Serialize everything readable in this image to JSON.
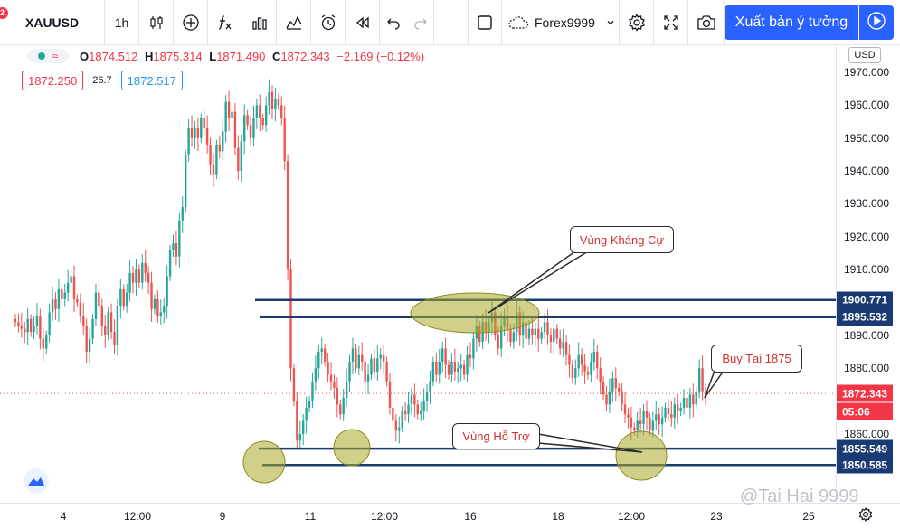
{
  "toolbar": {
    "notification_count": "2",
    "symbol": "XAUUSD",
    "interval": "1h",
    "broker": "Forex9999",
    "publish_label": "Xuất bản ý tưởng"
  },
  "legend": {
    "open_key": "O",
    "open": "1874.512",
    "high_key": "H",
    "high": "1875.314",
    "low_key": "L",
    "low": "1871.490",
    "close_key": "C",
    "close": "1872.343",
    "change": "−2.169 (−0.12%)"
  },
  "quote": {
    "sell": "1872.250",
    "spread": "26.7",
    "buy": "1872.517"
  },
  "price_axis": {
    "currency": "USD",
    "labels": [
      "1970.000",
      "1960.000",
      "1950.000",
      "1940.000",
      "1930.000",
      "1920.000",
      "1910.000",
      "1890.000",
      "1880.000",
      "1860.000"
    ],
    "levels": [
      "1970.000",
      "1960.000",
      "1950.000",
      "1940.000",
      "1930.000",
      "1920.000",
      "1910.000",
      "1890.000",
      "1880.000",
      "1860.000"
    ],
    "tags": {
      "resistance_high": "1900.771",
      "resistance_low": "1895.532",
      "current": "1872.343",
      "countdown": "05:06",
      "support_high": "1855.549",
      "support_low": "1850.585"
    }
  },
  "time_axis": {
    "labels": [
      "4",
      "12:00",
      "9",
      "11",
      "12:00",
      "16",
      "18",
      "12:00",
      "23",
      "25"
    ]
  },
  "annotations": {
    "resistance": "Vùng Kháng Cự",
    "support": "Vùng Hỗ Trợ",
    "buy": "Buy Tại 1875"
  },
  "watermark": "@Tai Hai 9999",
  "chart_data": {
    "type": "candlestick",
    "symbol": "XAUUSD",
    "interval": "1h",
    "ylim": [
      1843,
      1978
    ],
    "horizontal_levels": [
      1900.771,
      1895.532,
      1855.549,
      1850.585
    ],
    "current_price": 1872.343,
    "closes": [
      1894,
      1893,
      1892,
      1891,
      1895,
      1891,
      1893,
      1896,
      1889,
      1886,
      1890,
      1897,
      1901,
      1898,
      1904,
      1901,
      1903,
      1906,
      1908,
      1901,
      1900,
      1896,
      1893,
      1885,
      1889,
      1895,
      1903,
      1899,
      1893,
      1890,
      1897,
      1891,
      1887,
      1899,
      1904,
      1899,
      1903,
      1909,
      1906,
      1910,
      1906,
      1912,
      1909,
      1906,
      1898,
      1901,
      1896,
      1897,
      1899,
      1908,
      1916,
      1918,
      1914,
      1925,
      1929,
      1945,
      1953,
      1950,
      1953,
      1950,
      1956,
      1953,
      1948,
      1942,
      1939,
      1948,
      1946,
      1952,
      1961,
      1956,
      1958,
      1947,
      1940,
      1949,
      1957,
      1954,
      1950,
      1956,
      1960,
      1956,
      1954,
      1960,
      1964,
      1959,
      1962,
      1960,
      1956,
      1943,
      1910,
      1880,
      1870,
      1858,
      1860,
      1864,
      1868,
      1870,
      1876,
      1880,
      1885,
      1886,
      1882,
      1878,
      1876,
      1874,
      1869,
      1866,
      1871,
      1876,
      1882,
      1886,
      1880,
      1884,
      1882,
      1876,
      1878,
      1883,
      1879,
      1883,
      1884,
      1882,
      1876,
      1868,
      1864,
      1861,
      1862,
      1867,
      1866,
      1869,
      1872,
      1869,
      1866,
      1867,
      1870,
      1873,
      1876,
      1882,
      1878,
      1882,
      1886,
      1881,
      1878,
      1882,
      1879,
      1880,
      1881,
      1878,
      1884,
      1883,
      1889,
      1893,
      1888,
      1894,
      1891,
      1894,
      1897,
      1890,
      1886,
      1893,
      1896,
      1892,
      1888,
      1891,
      1897,
      1890,
      1894,
      1889,
      1892,
      1890,
      1892,
      1889,
      1891,
      1894,
      1890,
      1888,
      1892,
      1889,
      1886,
      1888,
      1884,
      1881,
      1877,
      1880,
      1884,
      1881,
      1879,
      1878,
      1882,
      1885,
      1880,
      1876,
      1872,
      1869,
      1873,
      1877,
      1874,
      1873,
      1869,
      1866,
      1865,
      1862,
      1861,
      1864,
      1863,
      1867,
      1865,
      1861,
      1864,
      1866,
      1863,
      1865,
      1868,
      1866,
      1865,
      1869,
      1867,
      1868,
      1871,
      1868,
      1872,
      1869,
      1873,
      1880,
      1873,
      1872
    ]
  }
}
